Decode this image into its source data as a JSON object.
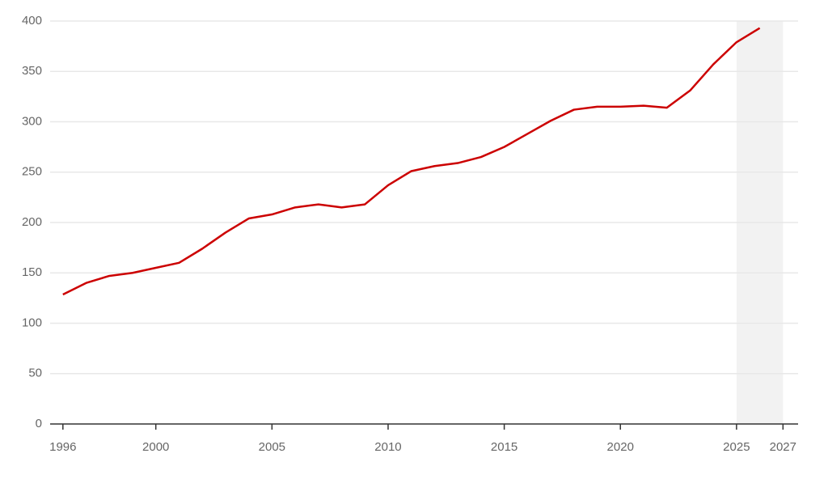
{
  "chart_data": {
    "type": "line",
    "x": [
      1996,
      1997,
      1998,
      1999,
      2000,
      2001,
      2002,
      2003,
      2004,
      2005,
      2006,
      2007,
      2008,
      2009,
      2010,
      2011,
      2012,
      2013,
      2014,
      2015,
      2016,
      2017,
      2018,
      2019,
      2020,
      2021,
      2022,
      2023,
      2024,
      2025,
      2026
    ],
    "series": [
      {
        "color": "#cc0000",
        "values": [
          128.5,
          140,
          147,
          150,
          155,
          160,
          174,
          190,
          204,
          208,
          215,
          218,
          215,
          218,
          237,
          251,
          256,
          259,
          265,
          275,
          288,
          301,
          312,
          315,
          315,
          316,
          314,
          331,
          357,
          379,
          393
        ]
      }
    ],
    "xlim": [
      1995.45,
      2027.65
    ],
    "xticks": [
      1996,
      2000,
      2005,
      2010,
      2015,
      2020,
      2025,
      2027
    ],
    "ylim": [
      0,
      400
    ],
    "yticks": [
      0,
      50,
      100,
      150,
      200,
      250,
      300,
      350,
      400
    ],
    "grid": true,
    "highlight_x": [
      2025,
      2027
    ],
    "highlight_color": "#f2f2f2"
  }
}
